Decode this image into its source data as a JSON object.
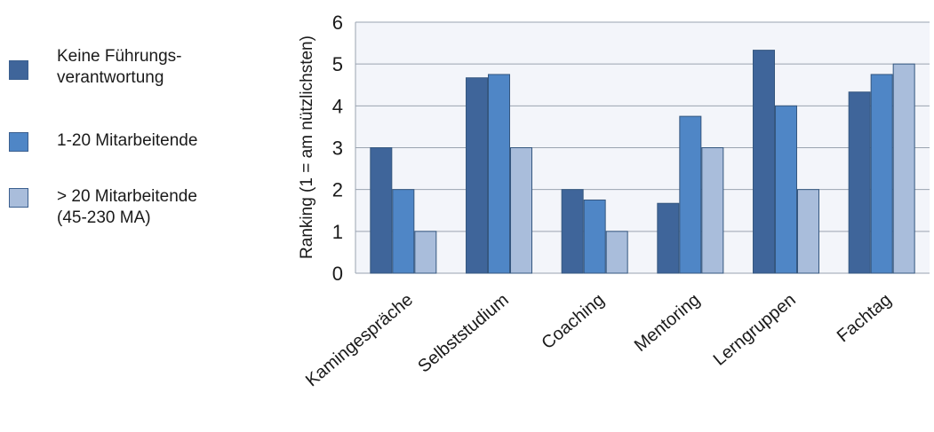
{
  "chart_data": {
    "type": "bar",
    "title": "",
    "xlabel": "",
    "ylabel": "Ranking (1 = am nützlichsten)",
    "ylim": [
      0,
      6
    ],
    "yticks": [
      0,
      1,
      2,
      3,
      4,
      5,
      6
    ],
    "grid": true,
    "legend_position": "left",
    "categories": [
      "Kamingespräche",
      "Selbststudium",
      "Coaching",
      "Mentoring",
      "Lerngruppen",
      "Fachtag"
    ],
    "series": [
      {
        "name": "Keine Führungs-\nverantwortung",
        "color": "#3f659a",
        "values": [
          3.0,
          4.67,
          2.0,
          1.67,
          5.33,
          4.33
        ]
      },
      {
        "name": "1-20 Mitarbeitende",
        "color": "#4f86c6",
        "values": [
          2.0,
          4.75,
          1.75,
          3.75,
          4.0,
          4.75
        ]
      },
      {
        "name": "> 20 Mitarbeitende\n(45-230 MA)",
        "color": "#a9bddb",
        "values": [
          1.0,
          3.0,
          1.0,
          3.0,
          2.0,
          5.0
        ]
      }
    ]
  }
}
